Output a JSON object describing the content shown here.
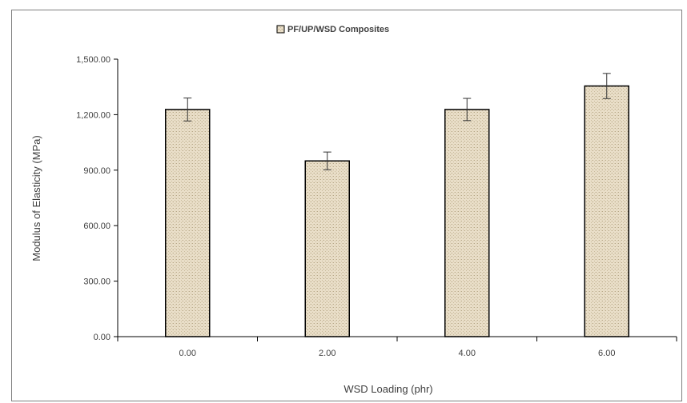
{
  "chart_data": {
    "type": "bar",
    "categories": [
      "0.00",
      "2.00",
      "4.00",
      "6.00"
    ],
    "series": [
      {
        "name": "PF/UP/WSD Composites",
        "values": [
          1228,
          950,
          1228,
          1355
        ],
        "error": [
          62,
          48,
          60,
          68
        ]
      }
    ],
    "xlabel": "WSD Loading (phr)",
    "ylabel": "Modulus of Elasticity (MPa)",
    "ylim": [
      0,
      1500
    ],
    "yticks": [
      "0.00",
      "300.00",
      "600.00",
      "900.00",
      "1,200.00",
      "1,500.00"
    ],
    "ytick_values": [
      0,
      300,
      600,
      900,
      1200,
      1500
    ],
    "grid": false,
    "legend_position": "top-center",
    "bar_color": "#e8dcc4",
    "bar_border": "#000000"
  }
}
